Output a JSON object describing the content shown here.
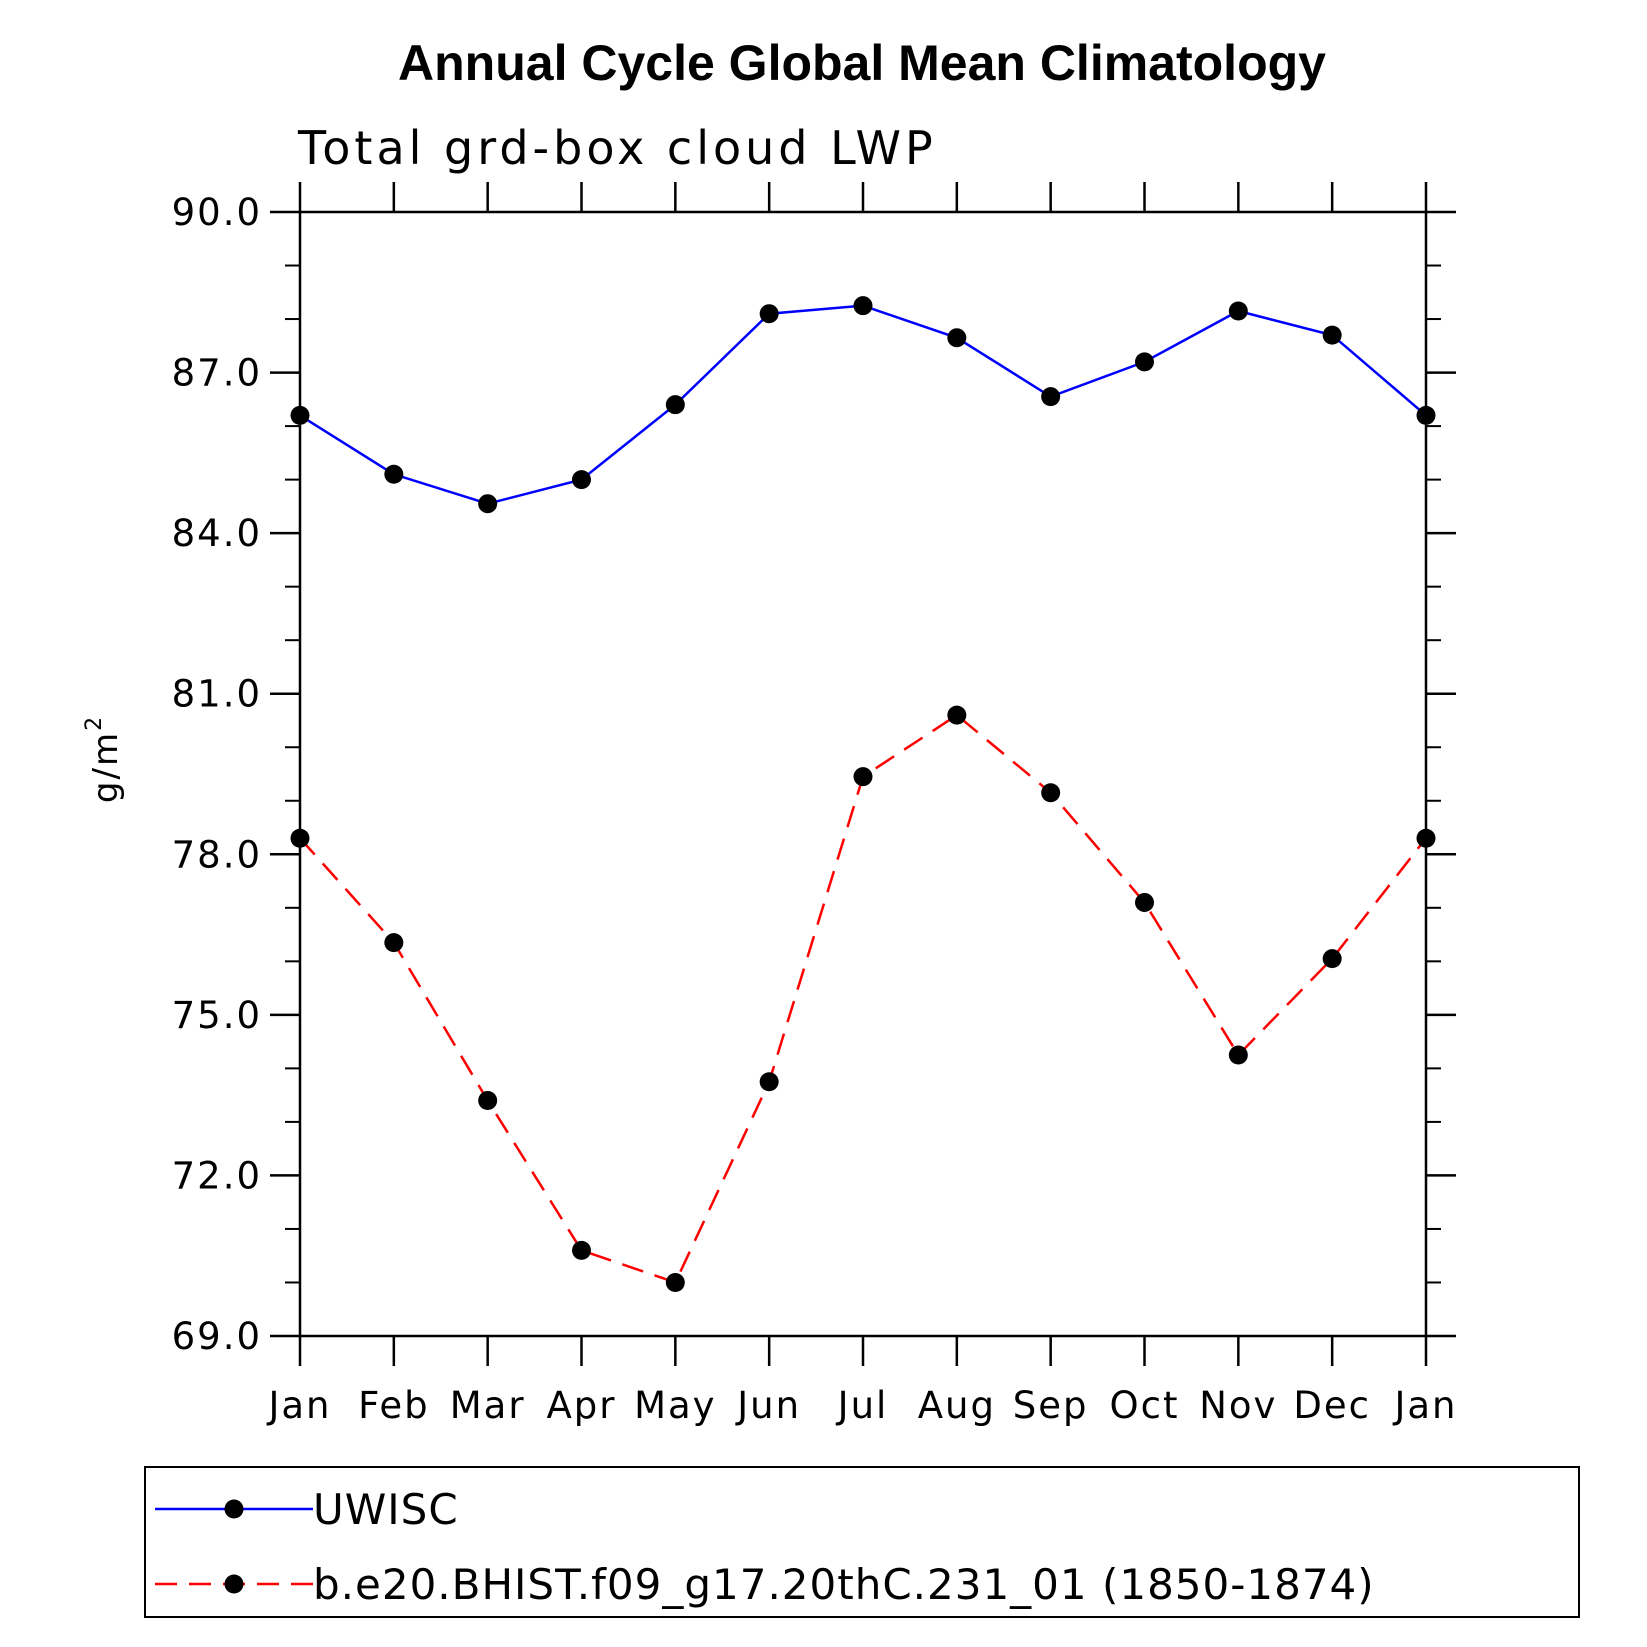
{
  "chart_data": {
    "type": "line",
    "title": "Annual Cycle Global Mean Climatology",
    "subtitle": "Total grd-box cloud LWP",
    "ylabel": "g/m",
    "ylabel_sup": "2",
    "ylim": [
      69.0,
      90.0
    ],
    "yticks": [
      69.0,
      72.0,
      75.0,
      78.0,
      81.0,
      84.0,
      87.0,
      90.0
    ],
    "ytick_labels": [
      "69.0",
      "72.0",
      "75.0",
      "78.0",
      "81.0",
      "84.0",
      "87.0",
      "90.0"
    ],
    "categories": [
      "Jan",
      "Feb",
      "Mar",
      "Apr",
      "May",
      "Jun",
      "Jul",
      "Aug",
      "Sep",
      "Oct",
      "Nov",
      "Dec",
      "Jan"
    ],
    "series": [
      {
        "name": "UWISC",
        "color": "#0000ff",
        "dash": "solid",
        "values": [
          86.2,
          85.1,
          84.55,
          85.0,
          86.4,
          88.1,
          88.25,
          87.65,
          86.55,
          87.2,
          88.15,
          87.7,
          86.2
        ]
      },
      {
        "name": "b.e20.BHIST.f09_g17.20thC.231_01 (1850-1874)",
        "color": "#ff0000",
        "dash": "dashed",
        "values": [
          78.3,
          76.35,
          73.4,
          70.6,
          70.0,
          73.75,
          79.45,
          80.6,
          79.15,
          77.1,
          74.25,
          76.05,
          78.3
        ]
      }
    ],
    "legend_position": "bottom"
  }
}
